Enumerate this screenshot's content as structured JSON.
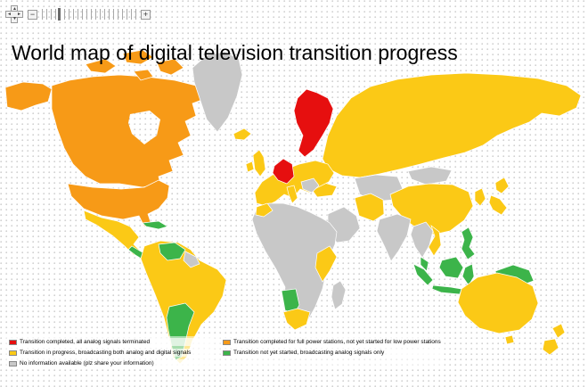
{
  "title": "World map of digital television transition progress",
  "toolbar": {
    "zoom_out_label": "−",
    "zoom_in_label": "+",
    "pan": {
      "up": "▲",
      "down": "▼",
      "left": "◄",
      "right": "►"
    }
  },
  "legend": {
    "columns": [
      {
        "items": [
          {
            "status": "completed",
            "label": "Transition completed, all analog signals terminated"
          },
          {
            "status": "in_progress",
            "label": "Transition in progress, broadcasting both analog and digital signals"
          },
          {
            "status": "no_info",
            "label": "No information available (plz share your information)"
          }
        ]
      },
      {
        "items": [
          {
            "status": "full_power",
            "label": "Transition completed for full power stations, not yet started for low power stations"
          },
          {
            "status": "not_started",
            "label": "Transition not yet started, broadcasting analog signals only"
          }
        ]
      }
    ]
  },
  "map": {
    "status_colors": {
      "completed": "#e60f0f",
      "in_progress": "#fbc916",
      "no_info": "#c8c8c8",
      "full_power": "#f79a17",
      "not_started": "#3cb44a"
    },
    "ocean_dot_color": "#cfcfcf",
    "regions": {
      "completed": [
        "Scandinavia",
        "Netherlands-Germany"
      ],
      "full_power": [
        "United States",
        "Alaska",
        "Canada"
      ],
      "in_progress": [
        "Russia",
        "China",
        "Europe (most)",
        "United Kingdom",
        "Ireland",
        "Iceland",
        "Italy",
        "Turkey",
        "Iran",
        "Vietnam",
        "Korea",
        "Japan",
        "Mexico",
        "South America (most)",
        "Chile",
        "Morocco",
        "East Africa",
        "South Africa",
        "Australia",
        "New Zealand"
      ],
      "not_started": [
        "Central America",
        "Cuba",
        "Venezuela",
        "Argentina",
        "Namibia",
        "Malaysia",
        "Indonesia",
        "Philippines",
        "New Guinea"
      ],
      "no_info": [
        "Greenland",
        "Africa (most)",
        "India",
        "Arabia",
        "Kazakhstan / Central Asia",
        "Mongolia",
        "Indochina",
        "Madagascar",
        "Guyanas",
        "Balkans"
      ]
    }
  }
}
